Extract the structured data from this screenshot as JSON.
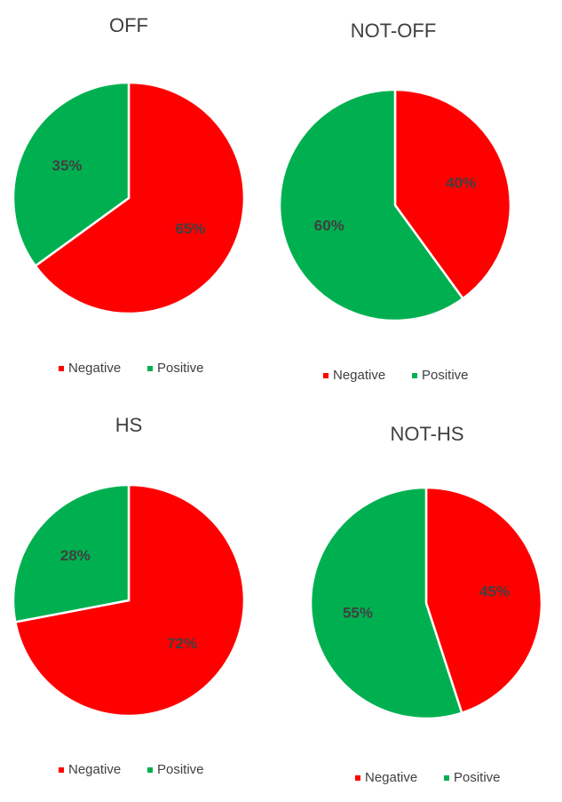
{
  "chart_data": [
    {
      "type": "pie",
      "title": "OFF",
      "categories": [
        "Negative",
        "Positive"
      ],
      "values": [
        65,
        35
      ],
      "data_labels": [
        "65%",
        "35%"
      ],
      "colors": [
        "#ff0000",
        "#00b050"
      ],
      "legend": {
        "position": "bottom",
        "entries": [
          "Negative",
          "Positive"
        ]
      }
    },
    {
      "type": "pie",
      "title": "NOT-OFF",
      "categories": [
        "Negative",
        "Positive"
      ],
      "values": [
        40,
        60
      ],
      "data_labels": [
        "40%",
        "60%"
      ],
      "colors": [
        "#ff0000",
        "#00b050"
      ],
      "legend": {
        "position": "bottom",
        "entries": [
          "Negative",
          "Positive"
        ]
      }
    },
    {
      "type": "pie",
      "title": "HS",
      "categories": [
        "Negative",
        "Positive"
      ],
      "values": [
        72,
        28
      ],
      "data_labels": [
        "72%",
        "28%"
      ],
      "colors": [
        "#ff0000",
        "#00b050"
      ],
      "legend": {
        "position": "bottom",
        "entries": [
          "Negative",
          "Positive"
        ]
      }
    },
    {
      "type": "pie",
      "title": "NOT-HS",
      "categories": [
        "Negative",
        "Positive"
      ],
      "values": [
        45,
        55
      ],
      "data_labels": [
        "45%",
        "55%"
      ],
      "colors": [
        "#ff0000",
        "#00b050"
      ],
      "legend": {
        "position": "bottom",
        "entries": [
          "Negative",
          "Positive"
        ]
      }
    }
  ]
}
